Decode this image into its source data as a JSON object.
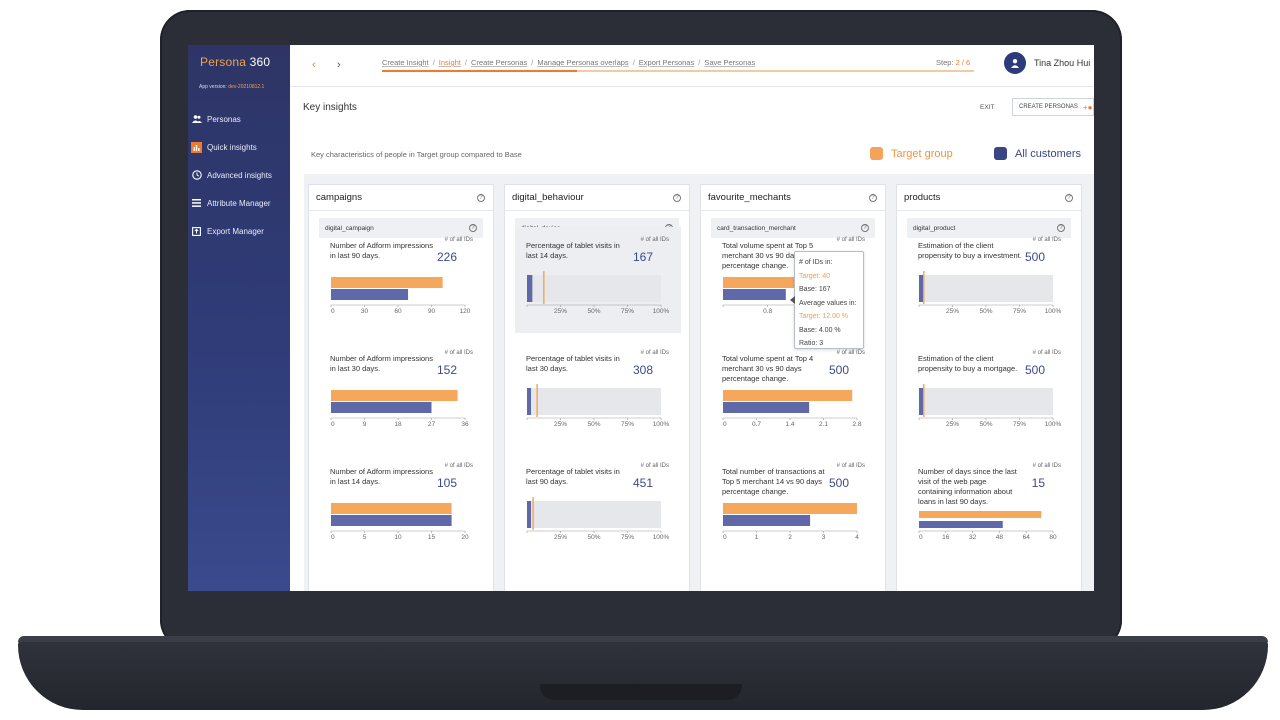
{
  "app": {
    "brand_a": "Persona",
    "brand_b": "360",
    "version_label": "App version: ",
    "version_value": "dev-20210812.1"
  },
  "sidebar": {
    "items": [
      {
        "label": "Personas",
        "icon": "users-icon"
      },
      {
        "label": "Quick insights",
        "icon": "chart-icon",
        "active": true
      },
      {
        "label": "Advanced insights",
        "icon": "clock-icon"
      },
      {
        "label": "Attribute Manager",
        "icon": "list-icon"
      },
      {
        "label": "Export Manager",
        "icon": "export-icon"
      }
    ]
  },
  "topbar": {
    "crumbs": [
      "Create Insight",
      "Insight",
      "Create Personas",
      "Manage Personas overlaps",
      "Export Personas",
      "Save Personas"
    ],
    "active_crumb": 1,
    "step_label": "Step: ",
    "step_value": "2 / 6",
    "progress": 0.33,
    "user": "Tina Zhou Hui"
  },
  "page": {
    "title": "Key insights",
    "exit": "EXIT",
    "create": "CREATE PERSONAS",
    "subtitle": "Key characteristics of people in Target group compared to Base",
    "legend_target": "Target group",
    "legend_base": "All customers"
  },
  "colors": {
    "target": "#f5a75c",
    "base": "#5f68a8",
    "accent": "#f07a30",
    "tooltip_orange": "#f0a050"
  },
  "cap": "# of all IDs",
  "columns": [
    {
      "title": "campaigns",
      "sub": "digital_campaign",
      "cards": [
        {
          "label": "Number of Adform impressions in last 90 days.",
          "value": "226",
          "type": "bar",
          "ticks": [
            "0",
            "30",
            "60",
            "90",
            "120"
          ],
          "max": 120,
          "target": 100,
          "base": 69
        },
        {
          "label": "Number of Adform impressions in last 30 days.",
          "value": "152",
          "type": "bar",
          "ticks": [
            "0",
            "9",
            "18",
            "27",
            "36"
          ],
          "max": 36,
          "target": 34,
          "base": 27
        },
        {
          "label": "Number of Adform impressions in last 14 days.",
          "value": "105",
          "type": "bar",
          "ticks": [
            "0",
            "5",
            "10",
            "15",
            "20"
          ],
          "max": 20,
          "target": 18,
          "base": 18
        }
      ]
    },
    {
      "title": "digital_behaviour",
      "sub": "digital_device",
      "cards": [
        {
          "label": "Percentage of tablet visits in last 14 days.",
          "value": "167",
          "type": "pct",
          "ticks": [
            "",
            "25%",
            "50%",
            "75%",
            "100%"
          ],
          "target": 12,
          "base": 4,
          "highlight": true
        },
        {
          "label": "Percentage of tablet visits in last 30 days.",
          "value": "308",
          "type": "pct",
          "ticks": [
            "",
            "25%",
            "50%",
            "75%",
            "100%"
          ],
          "target": 7,
          "base": 3
        },
        {
          "label": "Percentage of tablet visits in last 90 days.",
          "value": "451",
          "type": "pct",
          "ticks": [
            "",
            "25%",
            "50%",
            "75%",
            "100%"
          ],
          "target": 4,
          "base": 3
        }
      ]
    },
    {
      "title": "favourite_mechants",
      "sub": "card_transaction_merchant",
      "cards": [
        {
          "label": "Total volume spent at Top 5 merchant 30 vs 90 days percentage change.",
          "value": "500",
          "type": "bar",
          "ticks": [
            "",
            "0.8",
            "1.2",
            "1.6"
          ],
          "max": 1.6,
          "target": 1.5,
          "base": 0.75
        },
        {
          "label": "Total volume spent at Top 4 merchant 30 vs 90 days percentage change.",
          "value": "500",
          "type": "bar",
          "ticks": [
            "0",
            "0.7",
            "1.4",
            "2.1",
            "2.8"
          ],
          "max": 2.8,
          "target": 2.7,
          "base": 1.8
        },
        {
          "label": "Total number of transactions at Top 5 merchant 14 vs 90 days percentage change.",
          "value": "500",
          "type": "bar",
          "ticks": [
            "0",
            "1",
            "2",
            "3",
            "4"
          ],
          "max": 4,
          "target": 4,
          "base": 2.6
        }
      ]
    },
    {
      "title": "products",
      "sub": "digital_product",
      "cards": [
        {
          "label": "Estimation of the client propensity to buy a investment.",
          "value": "500",
          "type": "pct",
          "ticks": [
            "",
            "25%",
            "50%",
            "75%",
            "100%"
          ],
          "target": 3,
          "base": 2
        },
        {
          "label": "Estimation of the client propensity to buy a mortgage.",
          "value": "500",
          "type": "pct",
          "ticks": [
            "",
            "25%",
            "50%",
            "75%",
            "100%"
          ],
          "target": 3,
          "base": 2
        },
        {
          "label": "Number of days since the last visit of the web page containing information about loans in last 90 days.",
          "value": "15",
          "type": "bar",
          "ticks": [
            "0",
            "16",
            "32",
            "48",
            "64",
            "80"
          ],
          "max": 80,
          "target": 73,
          "base": 50
        }
      ]
    }
  ],
  "tooltip": {
    "l1": "# of IDs in:",
    "l2": "Target: 40",
    "l3": "Base: 167",
    "l4": "Average values in:",
    "l5": "Target: 12.00 %",
    "l6": "Base: 4.00 %",
    "l7": "Ratio: 3"
  }
}
